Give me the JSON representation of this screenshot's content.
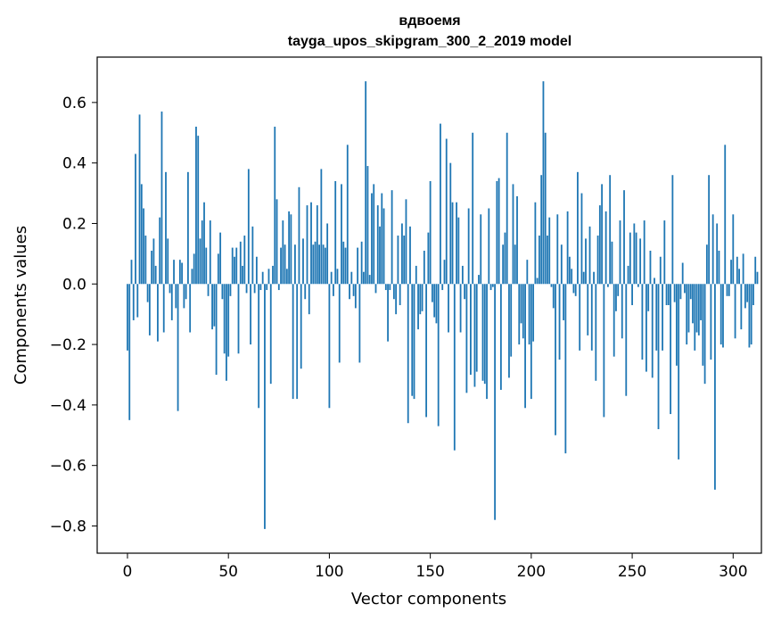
{
  "chart_data": {
    "type": "bar",
    "title": "вдвоемя",
    "subtitle": "tayga_upos_skipgram_300_2_2019 model",
    "xlabel": "Vector components",
    "ylabel": "Components values",
    "xlim": [
      -15,
      314
    ],
    "ylim": [
      -0.89,
      0.75
    ],
    "xticks": [
      0,
      50,
      100,
      150,
      200,
      250,
      300
    ],
    "xtick_labels": [
      "0",
      "50",
      "100",
      "150",
      "200",
      "250",
      "300"
    ],
    "yticks": [
      -0.8,
      -0.6,
      -0.4,
      -0.2,
      0.0,
      0.2,
      0.4,
      0.6
    ],
    "ytick_labels": [
      "−0.8",
      "−0.6",
      "−0.4",
      "−0.2",
      "0.0",
      "0.2",
      "0.4",
      "0.6"
    ],
    "grid": false,
    "bar_color": "#1f77b4",
    "x_start": 0,
    "values": [
      -0.22,
      -0.45,
      0.08,
      -0.12,
      0.43,
      -0.11,
      0.56,
      0.33,
      0.25,
      0.16,
      -0.06,
      -0.17,
      0.11,
      0.15,
      0.06,
      -0.19,
      0.22,
      0.57,
      -0.16,
      0.37,
      0.15,
      -0.03,
      -0.12,
      0.08,
      -0.08,
      -0.42,
      0.08,
      0.07,
      -0.08,
      -0.05,
      0.37,
      -0.16,
      0.05,
      0.1,
      0.52,
      0.49,
      0.15,
      0.21,
      0.27,
      0.12,
      -0.04,
      0.21,
      -0.15,
      -0.14,
      -0.3,
      0.1,
      0.17,
      -0.05,
      -0.23,
      -0.32,
      -0.24,
      -0.04,
      0.12,
      0.09,
      0.12,
      -0.23,
      0.14,
      0.06,
      0.16,
      -0.03,
      0.38,
      -0.2,
      0.19,
      -0.03,
      0.09,
      -0.41,
      -0.02,
      0.04,
      -0.81,
      -0.02,
      0.05,
      -0.33,
      0.06,
      0.52,
      0.28,
      -0.02,
      0.12,
      0.21,
      0.13,
      0.05,
      0.24,
      0.23,
      -0.38,
      0.13,
      -0.38,
      0.32,
      -0.28,
      0.15,
      -0.05,
      0.26,
      -0.1,
      0.27,
      0.13,
      0.14,
      0.26,
      0.13,
      0.38,
      0.13,
      0.12,
      0.2,
      -0.41,
      0.04,
      -0.04,
      0.34,
      0.05,
      -0.26,
      0.33,
      0.14,
      0.12,
      0.46,
      -0.05,
      0.04,
      -0.04,
      -0.08,
      0.12,
      -0.26,
      0.14,
      0.04,
      0.67,
      0.39,
      0.03,
      0.3,
      0.33,
      -0.03,
      0.26,
      0.19,
      0.3,
      0.25,
      -0.02,
      -0.19,
      -0.02,
      0.31,
      -0.05,
      -0.1,
      0.16,
      -0.07,
      0.2,
      0.16,
      0.28,
      -0.46,
      0.19,
      -0.37,
      -0.38,
      0.06,
      -0.15,
      -0.1,
      -0.09,
      0.11,
      -0.44,
      0.17,
      0.34,
      -0.06,
      -0.11,
      -0.13,
      -0.47,
      0.53,
      -0.02,
      0.08,
      0.48,
      -0.16,
      0.4,
      0.27,
      -0.55,
      0.27,
      0.22,
      -0.16,
      0.06,
      -0.05,
      -0.36,
      0.25,
      -0.3,
      0.5,
      -0.34,
      -0.29,
      0.03,
      0.23,
      -0.32,
      -0.33,
      -0.38,
      0.25,
      -0.02,
      -0.01,
      -0.78,
      0.34,
      0.35,
      -0.35,
      0.13,
      0.17,
      0.5,
      -0.31,
      -0.24,
      0.33,
      0.13,
      0.29,
      -0.2,
      -0.13,
      -0.18,
      -0.41,
      0.08,
      -0.2,
      -0.38,
      -0.19,
      0.27,
      0.02,
      0.16,
      0.36,
      0.67,
      0.5,
      0.16,
      0.22,
      -0.01,
      -0.08,
      -0.5,
      0.23,
      -0.25,
      0.13,
      -0.12,
      -0.56,
      0.24,
      0.09,
      0.05,
      -0.03,
      -0.04,
      0.37,
      -0.22,
      0.3,
      0.04,
      0.15,
      -0.17,
      0.19,
      -0.22,
      0.04,
      -0.32,
      0.16,
      0.26,
      0.33,
      -0.44,
      0.24,
      -0.01,
      0.36,
      0.14,
      -0.24,
      -0.09,
      -0.04,
      0.21,
      -0.18,
      0.31,
      -0.37,
      0.06,
      0.17,
      -0.07,
      0.2,
      0.17,
      -0.01,
      0.15,
      -0.25,
      0.21,
      -0.29,
      -0.09,
      0.11,
      -0.31,
      0.02,
      -0.22,
      -0.48,
      0.09,
      -0.22,
      0.21,
      -0.07,
      -0.07,
      -0.43,
      0.36,
      -0.06,
      -0.27,
      -0.58,
      -0.05,
      0.07,
      -0.03,
      -0.2,
      -0.16,
      -0.05,
      -0.13,
      -0.22,
      -0.16,
      -0.17,
      -0.12,
      -0.27,
      -0.33,
      0.13,
      0.36,
      -0.25,
      0.23,
      -0.68,
      0.2,
      0.11,
      -0.2,
      -0.21,
      0.46,
      -0.04,
      -0.04,
      0.08,
      0.23,
      -0.18,
      0.09,
      0.05,
      -0.15,
      0.1,
      -0.08,
      -0.06,
      -0.21,
      -0.2,
      -0.07,
      0.09,
      0.04
    ]
  }
}
